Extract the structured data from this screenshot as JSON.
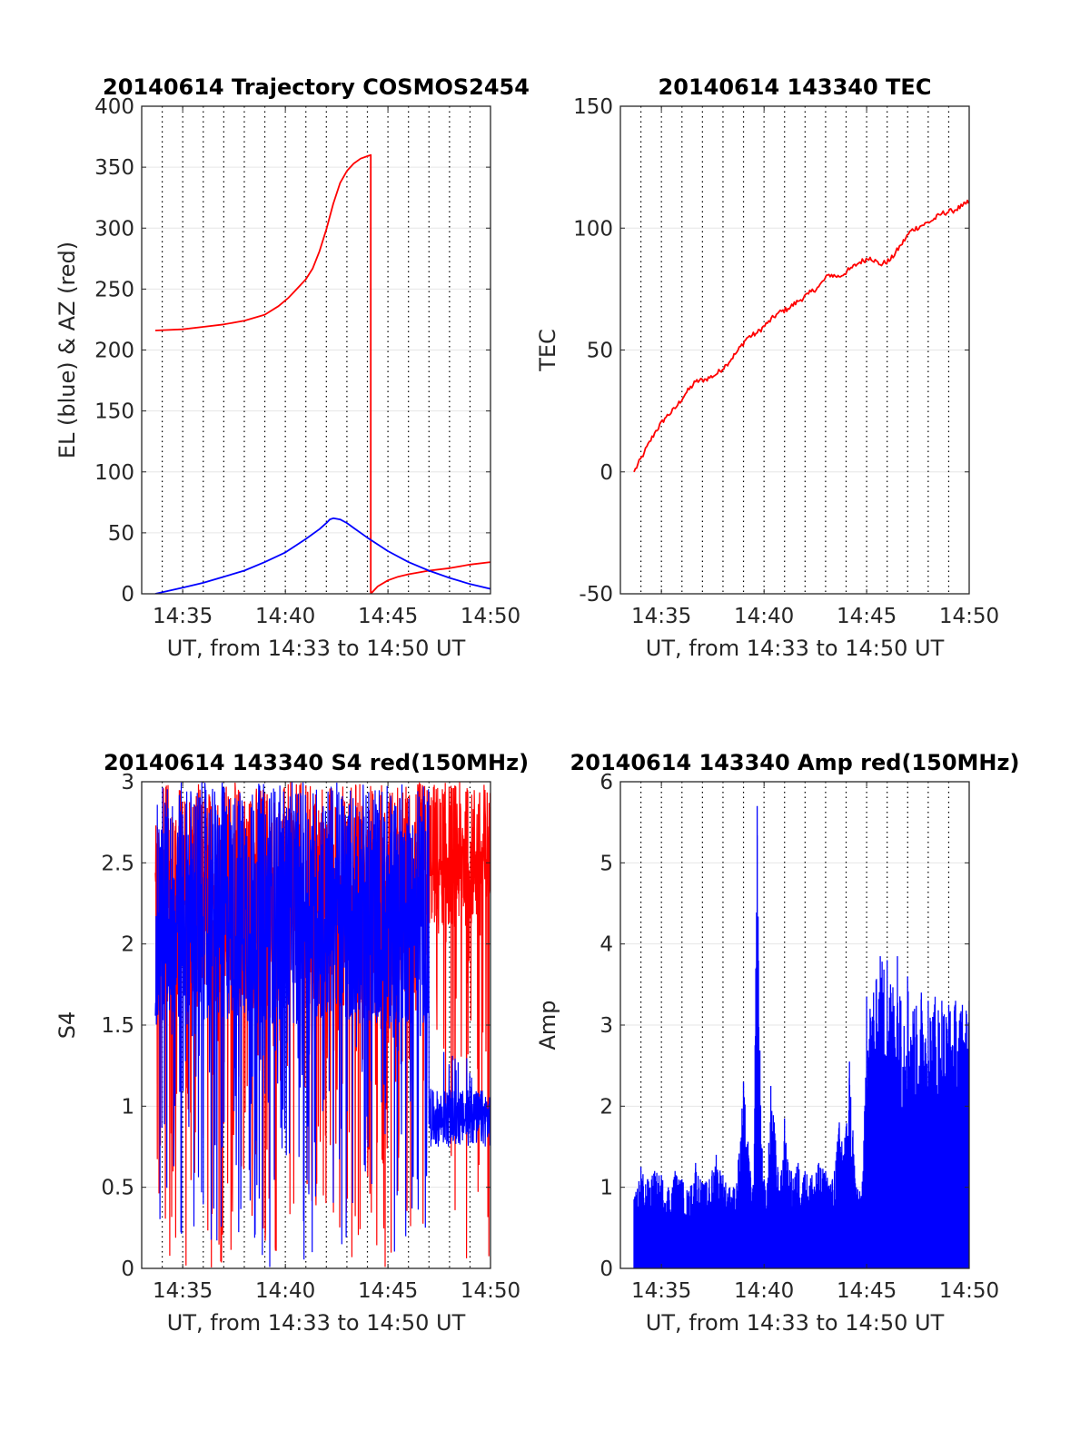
{
  "chart_data": [
    {
      "type": "line",
      "title": "20140614 Trajectory COSMOS2454",
      "xlabel": "UT, from 14:33 to 14:50 UT",
      "ylabel": "EL (blue) & AZ (red)",
      "xlim": [
        14.55,
        14.8333
      ],
      "ylim": [
        0,
        400
      ],
      "xticks": [
        14.5833,
        14.6667,
        14.75,
        14.8333
      ],
      "xticklabels": [
        "14:35",
        "14:40",
        "14:45",
        "14:50"
      ],
      "yticks": [
        0,
        50,
        100,
        150,
        200,
        250,
        300,
        350,
        400
      ],
      "yticklabels": [
        "0",
        "50",
        "100",
        "150",
        "200",
        "250",
        "300",
        "350",
        "400"
      ],
      "grid": true,
      "series": [
        {
          "color": "#ff0000",
          "x": [
            14.5611,
            14.5833,
            14.6,
            14.6167,
            14.6333,
            14.65,
            14.6611,
            14.6694,
            14.675,
            14.6833,
            14.6889,
            14.6944,
            14.7,
            14.7056,
            14.7111,
            14.7167,
            14.7222,
            14.7278,
            14.7333,
            14.7361,
            14.7361,
            14.7417,
            14.75,
            14.7583,
            14.7667,
            14.7833,
            14.8,
            14.8167,
            14.8333
          ],
          "y": [
            216,
            217,
            219,
            221,
            224,
            229,
            236,
            243,
            249,
            258,
            267,
            281,
            299,
            320,
            337,
            347,
            353,
            357,
            359,
            360,
            0,
            6,
            11,
            14,
            16,
            19,
            21,
            24,
            26
          ]
        },
        {
          "color": "#0000ff",
          "x": [
            14.5611,
            14.5833,
            14.6,
            14.6167,
            14.6333,
            14.65,
            14.6667,
            14.6833,
            14.6944,
            14.7,
            14.7028,
            14.7056,
            14.7111,
            14.7167,
            14.7222,
            14.7333,
            14.75,
            14.7667,
            14.7833,
            14.8,
            14.8167,
            14.8333
          ],
          "y": [
            0,
            5,
            9,
            14,
            19,
            26,
            34,
            45,
            53,
            58,
            61,
            62,
            61,
            58,
            54,
            46,
            35,
            26,
            19,
            13,
            8,
            4
          ]
        }
      ]
    },
    {
      "type": "line",
      "title": "20140614 143340 TEC",
      "xlabel": "UT, from 14:33 to 14:50 UT",
      "ylabel": "TEC",
      "xlim": [
        14.55,
        14.8333
      ],
      "ylim": [
        -50,
        150
      ],
      "xticks": [
        14.5833,
        14.6667,
        14.75,
        14.8333
      ],
      "xticklabels": [
        "14:35",
        "14:40",
        "14:45",
        "14:50"
      ],
      "yticks": [
        -50,
        0,
        50,
        100,
        150
      ],
      "yticklabels": [
        "-50",
        "0",
        "50",
        "100",
        "150"
      ],
      "grid": true,
      "series": [
        {
          "color": "#ff0000",
          "x": [
            14.5611,
            14.5694,
            14.5778,
            14.5861,
            14.5944,
            14.6028,
            14.6111,
            14.6194,
            14.6278,
            14.6361,
            14.6444,
            14.6528,
            14.6611,
            14.6694,
            14.6778,
            14.6861,
            14.6944,
            14.7028,
            14.7111,
            14.7194,
            14.7278,
            14.7361,
            14.7444,
            14.7528,
            14.7611,
            14.7694,
            14.7778,
            14.7861,
            14.7944,
            14.8028,
            14.8111,
            14.8194,
            14.8278,
            14.8333
          ],
          "y": [
            0,
            8,
            16,
            22,
            26,
            32,
            37,
            38,
            40,
            44,
            49,
            55,
            57,
            61,
            65,
            67,
            70,
            73,
            76,
            81,
            80,
            83,
            86,
            88,
            85,
            87,
            93,
            99,
            101,
            103,
            106,
            107,
            109,
            111
          ]
        }
      ]
    },
    {
      "type": "line",
      "title": "20140614 143340 S4 red(150MHz)",
      "xlabel": "UT, from 14:33 to 14:50 UT",
      "ylabel": "S4",
      "xlim": [
        14.55,
        14.8333
      ],
      "ylim": [
        0,
        3
      ],
      "xticks": [
        14.5833,
        14.6667,
        14.75,
        14.8333
      ],
      "xticklabels": [
        "14:35",
        "14:40",
        "14:45",
        "14:50"
      ],
      "yticks": [
        0,
        0.5,
        1,
        1.5,
        2,
        2.5,
        3
      ],
      "yticklabels": [
        "0",
        "0.5",
        "1",
        "1.5",
        "2",
        "2.5",
        "3"
      ],
      "grid": true,
      "series": [
        {
          "color": "#ff0000",
          "x_range": [
            14.5611,
            14.8333
          ],
          "y_range": [
            0,
            3
          ],
          "note_values": "dense noisy trace spanning 0 to 3 across the whole interval"
        },
        {
          "color": "#0000ff",
          "x_range": [
            14.5611,
            14.8333
          ],
          "y_range": [
            0,
            3
          ],
          "note_values": "dense noisy trace spanning 0 to 3 before ~14:47, then ~0.7 to 1.1"
        }
      ]
    },
    {
      "type": "line",
      "title": "20140614 143340 Amp red(150MHz)",
      "xlabel": "UT, from 14:33 to 14:50 UT",
      "ylabel": "Amp",
      "xlim": [
        14.55,
        14.8333
      ],
      "ylim": [
        0,
        6
      ],
      "xticks": [
        14.5833,
        14.6667,
        14.75,
        14.8333
      ],
      "xticklabels": [
        "14:35",
        "14:40",
        "14:45",
        "14:50"
      ],
      "yticks": [
        0,
        1,
        2,
        3,
        4,
        5,
        6
      ],
      "yticklabels": [
        "0",
        "1",
        "2",
        "3",
        "4",
        "5",
        "6"
      ],
      "grid": true,
      "series": [
        {
          "color": "#0000ff",
          "x": [
            14.5611,
            14.5667,
            14.5722,
            14.5778,
            14.5833,
            14.5889,
            14.5944,
            14.6,
            14.6056,
            14.6111,
            14.6167,
            14.6222,
            14.6278,
            14.6333,
            14.6389,
            14.6444,
            14.65,
            14.6556,
            14.6583,
            14.6611,
            14.6639,
            14.6667,
            14.6694,
            14.6722,
            14.675,
            14.6778,
            14.6806,
            14.6833,
            14.6861,
            14.6889,
            14.6944,
            14.7,
            14.7056,
            14.7111,
            14.7167,
            14.7222,
            14.7278,
            14.7333,
            14.7361,
            14.7389,
            14.7417,
            14.7444,
            14.7472,
            14.75,
            14.7528,
            14.7556,
            14.7611,
            14.7667,
            14.7694,
            14.775,
            14.7778,
            14.7833,
            14.7889,
            14.7944,
            14.8,
            14.8056,
            14.8111,
            14.8167,
            14.8222,
            14.8278,
            14.8333
          ],
          "y": [
            0.85,
            1.25,
            1.1,
            1.2,
            1.15,
            1.0,
            1.2,
            1.1,
            0.95,
            1.3,
            1.05,
            1.1,
            1.4,
            1.15,
            1.0,
            1.05,
            2.3,
            1.2,
            1.0,
            5.7,
            2.0,
            1.1,
            1.05,
            2.25,
            1.8,
            1.25,
            1.15,
            1.85,
            1.3,
            1.2,
            1.3,
            1.2,
            1.15,
            1.3,
            1.2,
            1.1,
            1.8,
            1.75,
            2.55,
            1.7,
            1.0,
            0.95,
            1.2,
            3.35,
            3.2,
            3.4,
            3.85,
            3.8,
            3.5,
            3.85,
            3.3,
            3.6,
            3.2,
            3.4,
            3.3,
            3.35,
            3.3,
            3.25,
            3.3,
            3.25,
            3.3
          ]
        }
      ]
    }
  ]
}
